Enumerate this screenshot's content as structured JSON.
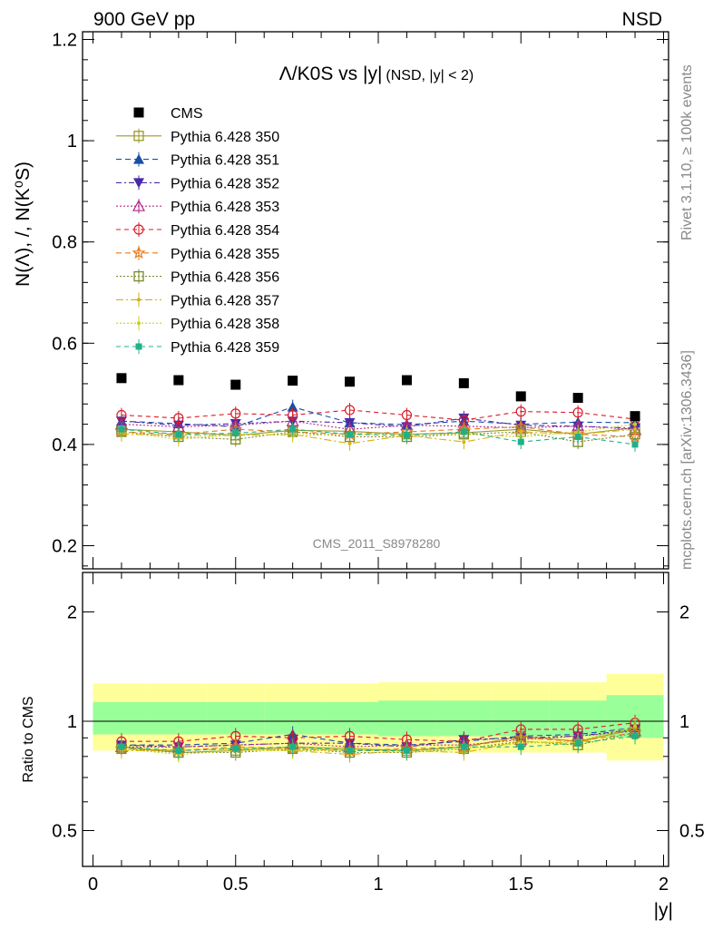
{
  "header": {
    "left": "900 GeV pp",
    "right": "NSD"
  },
  "side_labels": {
    "rivet": "Rivet 3.1.10, ≥ 100k events",
    "mcplots": "mcplots.cern.ch [arXiv:1306.3436]"
  },
  "watermark": "CMS_2011_S8978280",
  "chart_data": [
    {
      "type": "scatter",
      "title": "Λ/K0S vs |y|",
      "title_suffix": "(NSD, |y| < 2)",
      "ylabel": "N(Λ), /, N(K⁰S)",
      "xlabel": "|y|",
      "xlim": [
        0,
        2
      ],
      "ylim": [
        0.15,
        1.22
      ],
      "yticks": [
        "0.2",
        "0.4",
        "0.6",
        "0.8",
        "1",
        "1.2"
      ],
      "legend_position": "top-left",
      "x": [
        0.1,
        0.3,
        0.5,
        0.7,
        0.9,
        1.1,
        1.3,
        1.5,
        1.7,
        1.9
      ],
      "series": [
        {
          "name": "CMS",
          "color": "#000000",
          "marker": "square-filled",
          "dash": "none",
          "values": [
            0.531,
            0.527,
            0.518,
            0.526,
            0.524,
            0.527,
            0.521,
            0.495,
            0.492,
            0.456
          ]
        },
        {
          "name": "Pythia 6.428 350",
          "color": "#9a9a2a",
          "marker": "square-open",
          "dash": "solid",
          "values": [
            0.43,
            0.425,
            0.418,
            0.428,
            0.426,
            0.42,
            0.423,
            0.43,
            0.42,
            0.433
          ]
        },
        {
          "name": "Pythia 6.428 351",
          "color": "#1a4ea6",
          "marker": "triangle-up-filled",
          "dash": "6,4",
          "values": [
            0.446,
            0.441,
            0.435,
            0.474,
            0.443,
            0.439,
            0.446,
            0.44,
            0.444,
            0.443
          ]
        },
        {
          "name": "Pythia 6.428 352",
          "color": "#4a2aa6",
          "marker": "triangle-down-filled",
          "dash": "6,3,2,3",
          "values": [
            0.446,
            0.438,
            0.441,
            0.446,
            0.443,
            0.435,
            0.452,
            0.438,
            0.436,
            0.432
          ]
        },
        {
          "name": "Pythia 6.428 353",
          "color": "#b02a8a",
          "marker": "triangle-up-open",
          "dash": "2,2",
          "values": [
            0.44,
            0.435,
            0.438,
            0.446,
            0.43,
            0.438,
            0.436,
            0.433,
            0.436,
            0.43
          ]
        },
        {
          "name": "Pythia 6.428 354",
          "color": "#d81b28",
          "marker": "circle-open",
          "dash": "5,4",
          "values": [
            0.458,
            0.452,
            0.461,
            0.458,
            0.468,
            0.458,
            0.448,
            0.465,
            0.463,
            0.45
          ]
        },
        {
          "name": "Pythia 6.428 355",
          "color": "#e87a20",
          "marker": "star-open",
          "dash": "6,4",
          "values": [
            0.425,
            0.42,
            0.43,
            0.425,
            0.42,
            0.425,
            0.43,
            0.435,
            0.42,
            0.415
          ]
        },
        {
          "name": "Pythia 6.428 356",
          "color": "#7a8a2a",
          "marker": "square-open",
          "dash": "2,2",
          "values": [
            0.425,
            0.415,
            0.41,
            0.425,
            0.415,
            0.415,
            0.42,
            0.425,
            0.405,
            0.42
          ]
        },
        {
          "name": "Pythia 6.428 357",
          "color": "#d8b010",
          "marker": "dot",
          "dash": "8,3,2,3",
          "values": [
            0.42,
            0.418,
            0.418,
            0.42,
            0.402,
            0.418,
            0.405,
            0.425,
            0.42,
            0.43
          ]
        },
        {
          "name": "Pythia 6.428 358",
          "color": "#c8d020",
          "marker": "dot",
          "dash": "2,2",
          "values": [
            0.425,
            0.41,
            0.42,
            0.418,
            0.42,
            0.42,
            0.42,
            0.415,
            0.425,
            0.44
          ]
        },
        {
          "name": "Pythia 6.428 359",
          "color": "#20b088",
          "marker": "square-filled-small",
          "dash": "5,4",
          "values": [
            0.43,
            0.42,
            0.422,
            0.43,
            0.42,
            0.418,
            0.425,
            0.405,
            0.415,
            0.4
          ]
        }
      ]
    },
    {
      "type": "scatter",
      "ylabel": "Ratio to CMS",
      "xlabel": "|y|",
      "xlim": [
        0,
        2
      ],
      "ylog": true,
      "ylim": [
        0.4,
        2.5
      ],
      "yticks": [
        "0.5",
        "1",
        "2"
      ],
      "xticks": [
        "0",
        "0.5",
        "1",
        "1.5",
        "2"
      ],
      "band_colors": {
        "outer": "#ffff99",
        "inner": "#99ff99"
      },
      "band_edges": [
        0.0,
        0.2,
        0.4,
        0.6,
        0.8,
        1.0,
        1.2,
        1.4,
        1.6,
        1.8,
        2.0
      ],
      "band_outer": [
        [
          0.83,
          1.27
        ],
        [
          0.83,
          1.27
        ],
        [
          0.83,
          1.27
        ],
        [
          0.83,
          1.27
        ],
        [
          0.83,
          1.27
        ],
        [
          0.82,
          1.28
        ],
        [
          0.82,
          1.28
        ],
        [
          0.82,
          1.28
        ],
        [
          0.82,
          1.28
        ],
        [
          0.78,
          1.35
        ]
      ],
      "band_inner": [
        [
          0.92,
          1.13
        ],
        [
          0.92,
          1.13
        ],
        [
          0.92,
          1.13
        ],
        [
          0.92,
          1.13
        ],
        [
          0.92,
          1.13
        ],
        [
          0.91,
          1.14
        ],
        [
          0.91,
          1.14
        ],
        [
          0.91,
          1.14
        ],
        [
          0.91,
          1.14
        ],
        [
          0.9,
          1.18
        ]
      ],
      "ratio_series": [
        {
          "name": "Pythia 6.428 350",
          "values": [
            0.85,
            0.82,
            0.83,
            0.85,
            0.84,
            0.83,
            0.85,
            0.91,
            0.88,
            0.95
          ]
        },
        {
          "name": "Pythia 6.428 351",
          "values": [
            0.86,
            0.86,
            0.87,
            0.92,
            0.87,
            0.86,
            0.88,
            0.91,
            0.92,
            0.96
          ]
        },
        {
          "name": "Pythia 6.428 352",
          "values": [
            0.86,
            0.85,
            0.86,
            0.87,
            0.87,
            0.85,
            0.89,
            0.9,
            0.91,
            0.95
          ]
        },
        {
          "name": "Pythia 6.428 353",
          "values": [
            0.85,
            0.85,
            0.86,
            0.87,
            0.85,
            0.86,
            0.86,
            0.89,
            0.91,
            0.94
          ]
        },
        {
          "name": "Pythia 6.428 354",
          "values": [
            0.88,
            0.88,
            0.91,
            0.9,
            0.91,
            0.89,
            0.88,
            0.95,
            0.95,
            0.99
          ]
        },
        {
          "name": "Pythia 6.428 355",
          "values": [
            0.84,
            0.83,
            0.85,
            0.84,
            0.83,
            0.84,
            0.85,
            0.9,
            0.88,
            0.93
          ]
        },
        {
          "name": "Pythia 6.428 356",
          "values": [
            0.84,
            0.82,
            0.82,
            0.84,
            0.82,
            0.82,
            0.84,
            0.88,
            0.86,
            0.93
          ]
        },
        {
          "name": "Pythia 6.428 357",
          "values": [
            0.83,
            0.83,
            0.84,
            0.83,
            0.81,
            0.83,
            0.82,
            0.88,
            0.87,
            0.96
          ]
        },
        {
          "name": "Pythia 6.428 358",
          "values": [
            0.84,
            0.81,
            0.83,
            0.83,
            0.83,
            0.83,
            0.84,
            0.87,
            0.88,
            0.97
          ]
        },
        {
          "name": "Pythia 6.428 359",
          "values": [
            0.85,
            0.83,
            0.84,
            0.85,
            0.83,
            0.83,
            0.85,
            0.85,
            0.87,
            0.91
          ]
        }
      ]
    }
  ]
}
